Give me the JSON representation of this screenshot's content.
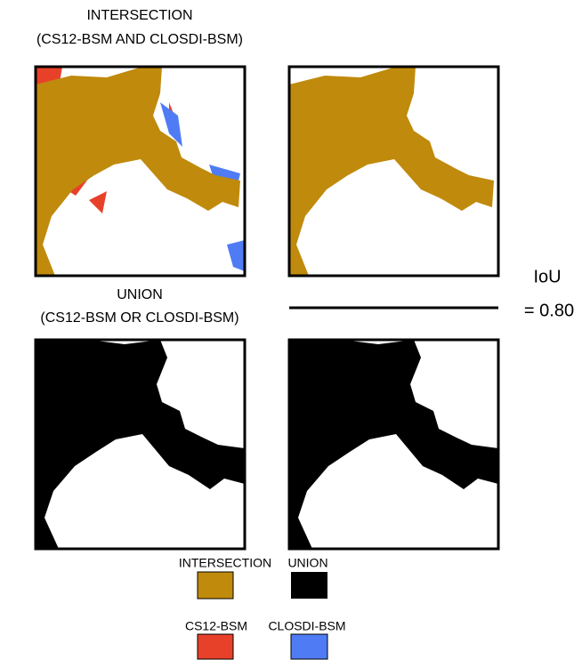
{
  "titles": {
    "intersection": {
      "line1": "INTERSECTION",
      "line2": "(CS12-BSM AND CLOSDI-BSM)"
    },
    "union": {
      "line1": "UNION",
      "line2": "(CS12-BSM OR CLOSDI-BSM)"
    }
  },
  "iou": {
    "label": "IoU",
    "value": "= 0.80"
  },
  "legend": {
    "row1": [
      "INTERSECTION",
      "UNION"
    ],
    "row2": [
      "CS12-BSM",
      "CLOSDI-BSM"
    ]
  }
}
